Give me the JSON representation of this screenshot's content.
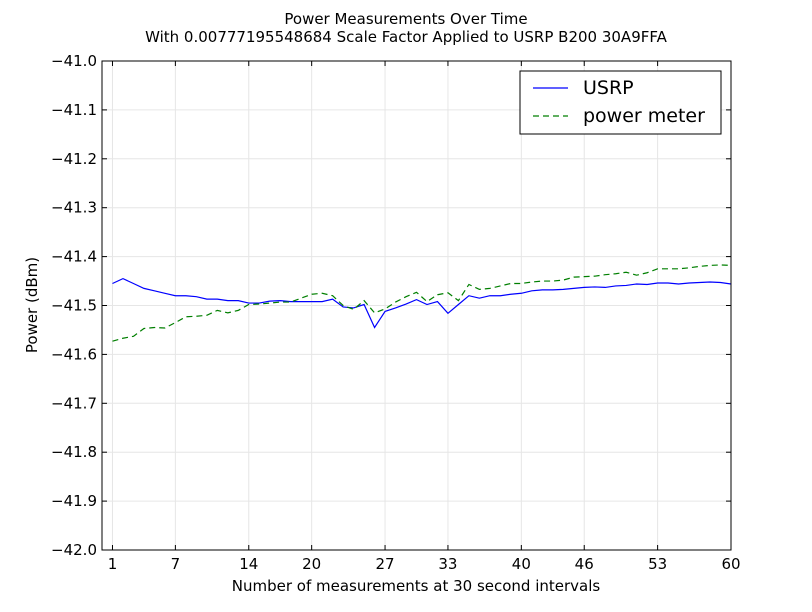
{
  "chart_data": {
    "type": "line",
    "title": "Power Measurements Over Time",
    "subtitle": "With 0.00777195548684 Scale Factor Applied to USRP B200 30A9FFA",
    "xlabel": "Number of measurements at 30 second intervals",
    "ylabel": "Power (dBm)",
    "xlim": [
      0,
      60
    ],
    "ylim": [
      -42.0,
      -41.0
    ],
    "x_ticks": [
      1,
      7,
      14,
      20,
      27,
      33,
      40,
      46,
      53,
      60
    ],
    "y_ticks": [
      -41.0,
      -41.1,
      -41.2,
      -41.3,
      -41.4,
      -41.5,
      -41.6,
      -41.7,
      -41.8,
      -41.9,
      -42.0
    ],
    "y_tick_labels": [
      "−41.0",
      "−41.1",
      "−41.2",
      "−41.3",
      "−41.4",
      "−41.5",
      "−41.6",
      "−41.7",
      "−41.8",
      "−41.9",
      "−42.0"
    ],
    "grid": true,
    "legend_position": "top-right",
    "x": [
      1,
      2,
      3,
      4,
      5,
      6,
      7,
      8,
      9,
      10,
      11,
      12,
      13,
      14,
      15,
      16,
      17,
      18,
      19,
      20,
      21,
      22,
      23,
      24,
      25,
      26,
      27,
      28,
      29,
      30,
      31,
      32,
      33,
      34,
      35,
      36,
      37,
      38,
      39,
      40,
      41,
      42,
      43,
      44,
      45,
      46,
      47,
      48,
      49,
      50,
      51,
      52,
      53,
      54,
      55,
      56,
      57,
      58,
      59,
      60
    ],
    "series": [
      {
        "name": "USRP",
        "color": "#0000ff",
        "style": "solid",
        "values": [
          -41.455,
          -41.445,
          -41.455,
          -41.465,
          -41.47,
          -41.475,
          -41.48,
          -41.48,
          -41.482,
          -41.487,
          -41.487,
          -41.49,
          -41.49,
          -41.495,
          -41.495,
          -41.491,
          -41.49,
          -41.492,
          -41.492,
          -41.492,
          -41.492,
          -41.487,
          -41.503,
          -41.505,
          -41.498,
          -41.545,
          -41.512,
          -41.505,
          -41.497,
          -41.488,
          -41.498,
          -41.492,
          -41.516,
          -41.498,
          -41.48,
          -41.485,
          -41.48,
          -41.48,
          -41.477,
          -41.475,
          -41.47,
          -41.468,
          -41.468,
          -41.467,
          -41.465,
          -41.463,
          -41.462,
          -41.463,
          -41.46,
          -41.459,
          -41.456,
          -41.457,
          -41.454,
          -41.454,
          -41.456,
          -41.454,
          -41.453,
          -41.452,
          -41.453,
          -41.456
        ]
      },
      {
        "name": "power meter",
        "color": "#007f00",
        "style": "dashed",
        "values": [
          -41.573,
          -41.567,
          -41.563,
          -41.547,
          -41.545,
          -41.546,
          -41.535,
          -41.523,
          -41.522,
          -41.52,
          -41.51,
          -41.515,
          -41.51,
          -41.498,
          -41.497,
          -41.495,
          -41.493,
          -41.493,
          -41.485,
          -41.477,
          -41.475,
          -41.48,
          -41.5,
          -41.508,
          -41.49,
          -41.515,
          -41.507,
          -41.493,
          -41.482,
          -41.473,
          -41.492,
          -41.478,
          -41.474,
          -41.49,
          -41.457,
          -41.467,
          -41.465,
          -41.46,
          -41.455,
          -41.455,
          -41.452,
          -41.45,
          -41.45,
          -41.448,
          -41.442,
          -41.441,
          -41.44,
          -41.437,
          -41.435,
          -41.432,
          -41.438,
          -41.433,
          -41.425,
          -41.425,
          -41.425,
          -41.423,
          -41.42,
          -41.418,
          -41.417,
          -41.418
        ]
      }
    ]
  }
}
